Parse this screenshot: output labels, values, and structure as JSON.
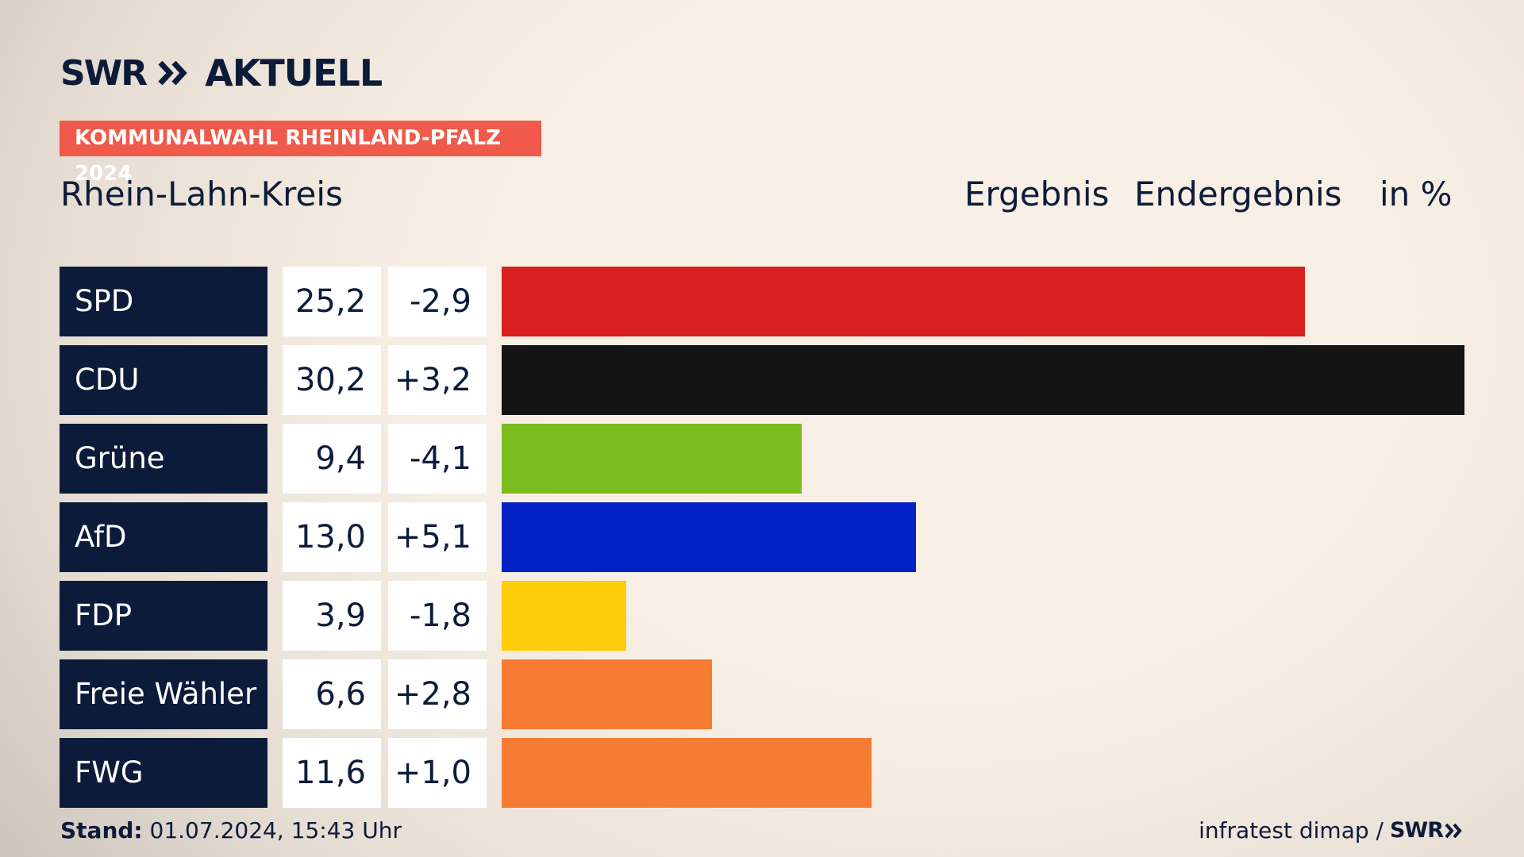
{
  "header": {
    "brand": "SWR",
    "brand_title": "AKTUELL",
    "badge": "KOMMUNALWAHL RHEINLAND-PFALZ 2024",
    "region": "Rhein-Lahn-Kreis",
    "col_ergebnis": "Ergebnis",
    "col_endergebnis": "Endergebnis",
    "col_unit": "in %"
  },
  "footer": {
    "stand_label": "Stand:",
    "stand_value": "01.07.2024, 15:43 Uhr",
    "source": "infratest dimap /",
    "source_brand": "SWR"
  },
  "colors": {
    "navy": "#0d1b3a",
    "badge": "#f05a4a"
  },
  "chart_data": {
    "type": "bar",
    "categories": [
      "SPD",
      "CDU",
      "Grüne",
      "AfD",
      "FDP",
      "Freie Wähler",
      "FWG"
    ],
    "values": [
      25.2,
      30.2,
      9.4,
      13.0,
      3.9,
      6.6,
      11.6
    ],
    "value_labels": [
      "25,2",
      "30,2",
      "9,4",
      "13,0",
      "3,9",
      "6,6",
      "11,6"
    ],
    "diff_labels": [
      "-2,9",
      "+3,2",
      "-4,1",
      "+5,1",
      "-1,8",
      "+2,8",
      "+1,0"
    ],
    "diffs": [
      -2.9,
      3.2,
      -4.1,
      5.1,
      -1.8,
      2.8,
      1.0
    ],
    "bar_colors": [
      "#d91f1f",
      "#141414",
      "#7abc1e",
      "#0322c6",
      "#fecd0a",
      "#f77b33",
      "#f77b33"
    ],
    "unit": "in %",
    "xlim": [
      0,
      30.2
    ]
  }
}
